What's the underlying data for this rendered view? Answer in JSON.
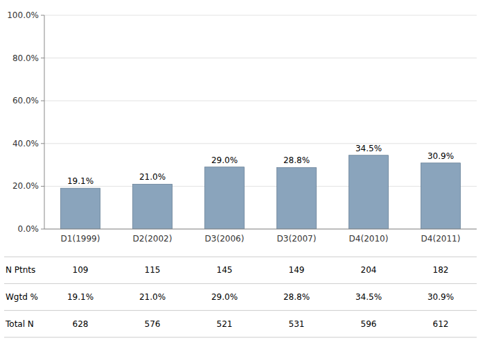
{
  "chart_data": {
    "type": "bar",
    "categories": [
      "D1(1999)",
      "D2(2002)",
      "D3(2006)",
      "D3(2007)",
      "D4(2010)",
      "D4(2011)"
    ],
    "values": [
      19.1,
      21.0,
      29.0,
      28.8,
      34.5,
      30.9
    ],
    "value_labels": [
      "19.1%",
      "21.0%",
      "29.0%",
      "28.8%",
      "34.5%",
      "30.9%"
    ],
    "data_labels": true,
    "color": "#8aa4bc",
    "ylim": [
      0,
      100
    ],
    "yticks": [
      {
        "value": 0,
        "label": "0.0%"
      },
      {
        "value": 20,
        "label": "20.0%"
      },
      {
        "value": 40,
        "label": "40.0%"
      },
      {
        "value": 60,
        "label": "60.0%"
      },
      {
        "value": 80,
        "label": "80.0%"
      },
      {
        "value": 100,
        "label": "100.0%"
      }
    ],
    "grid": true,
    "table": [
      {
        "name": "N Ptnts",
        "values": [
          109,
          115,
          145,
          149,
          204,
          182
        ]
      },
      {
        "name": "Wgtd %",
        "values": [
          19.1,
          21.0,
          29.0,
          28.8,
          34.5,
          30.9
        ],
        "value_labels": [
          "19.1%",
          "21.0%",
          "29.0%",
          "28.8%",
          "34.5%",
          "30.9%"
        ]
      },
      {
        "name": "Total N",
        "values": [
          628,
          576,
          521,
          531,
          596,
          612
        ]
      }
    ]
  }
}
